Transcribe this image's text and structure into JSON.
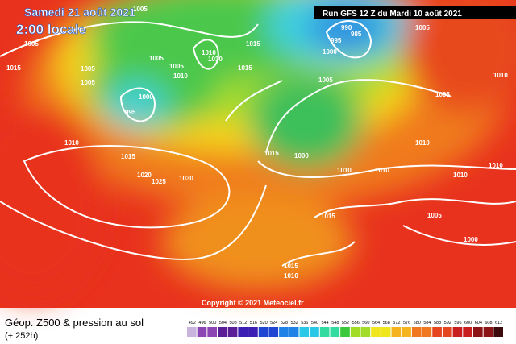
{
  "header": {
    "date": "Samedi 21 août 2021",
    "time": "2:00 locale",
    "run": "Run GFS 12 Z du Mardi 10 août 2021"
  },
  "copyright": "Copyright © 2021 Meteociel.fr",
  "footer": {
    "title": "Géop. Z500 & pression au sol",
    "lead": "(+ 252h)"
  },
  "isobar_labels": [
    "1005",
    "1005",
    "1005",
    "1005",
    "1005",
    "1015",
    "1005",
    "1010",
    "1010",
    "1030",
    "1015",
    "1015",
    "1000",
    "995",
    "990",
    "985",
    "995",
    "1000",
    "1005",
    "1005",
    "1010",
    "1015",
    "1020",
    "1025",
    "1030",
    "1015",
    "1000",
    "1010",
    "1010",
    "1010",
    "1010",
    "1010",
    "1005",
    "1000",
    "1015",
    "1015",
    "1010",
    "1010",
    "1005"
  ],
  "colorbar": [
    "492",
    "496",
    "500",
    "504",
    "508",
    "512",
    "516",
    "520",
    "524",
    "528",
    "532",
    "536",
    "540",
    "544",
    "548",
    "552",
    "556",
    "560",
    "564",
    "568",
    "572",
    "576",
    "580",
    "584",
    "588",
    "592",
    "596",
    "600",
    "604",
    "608",
    "612"
  ]
}
